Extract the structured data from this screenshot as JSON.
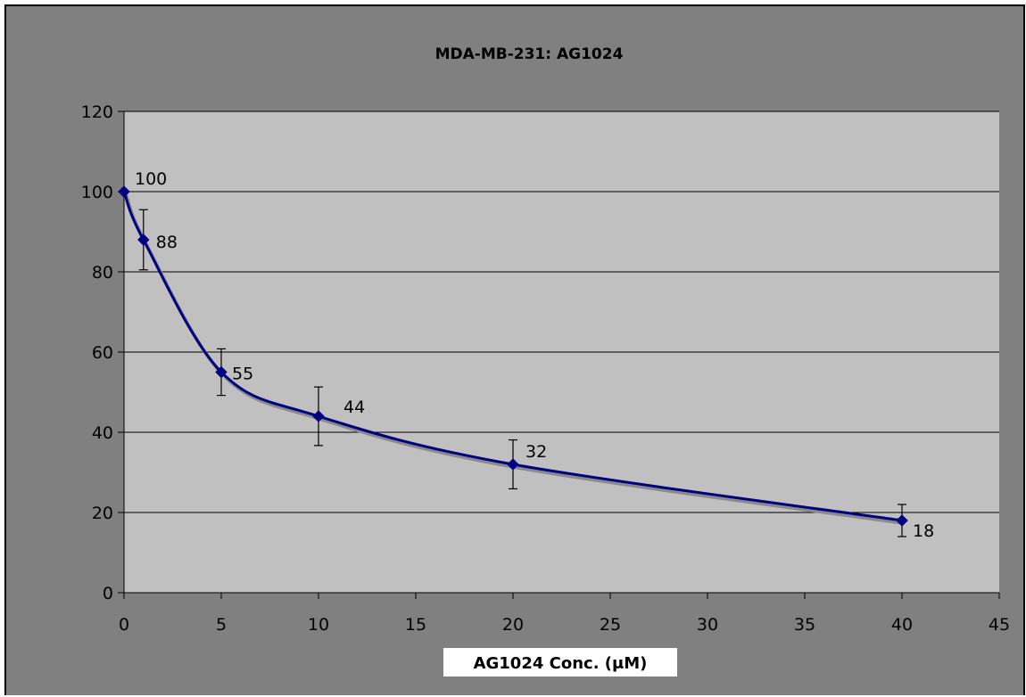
{
  "chart_data": {
    "type": "line",
    "title": "MDA-MB-231:  AG1024",
    "xlabel": "AG1024 Conc. (μM)",
    "ylabel": "",
    "xlim": [
      0,
      45
    ],
    "ylim": [
      0,
      120
    ],
    "x_ticks": [
      0,
      5,
      10,
      15,
      20,
      25,
      30,
      35,
      40,
      45
    ],
    "y_ticks": [
      0,
      20,
      40,
      60,
      80,
      100,
      120
    ],
    "grid": "horizontal",
    "legend": "none",
    "smoothed": true,
    "series": [
      {
        "x": [
          0,
          1,
          5,
          10,
          20,
          40
        ],
        "y": [
          100,
          88,
          55,
          44,
          32,
          18
        ],
        "error": [
          0,
          7.5,
          5.8,
          7.3,
          6.1,
          4.0
        ],
        "data_labels": [
          "100",
          "88",
          "55",
          "44",
          "32",
          "18"
        ],
        "marker": "diamond",
        "color": "#000080"
      }
    ],
    "colors": {
      "frame_background": "#808080",
      "plot_background": "#c0c0c0",
      "gridline": "#000000",
      "line": "#000080",
      "line_shadow": "#8a8a8a"
    }
  }
}
